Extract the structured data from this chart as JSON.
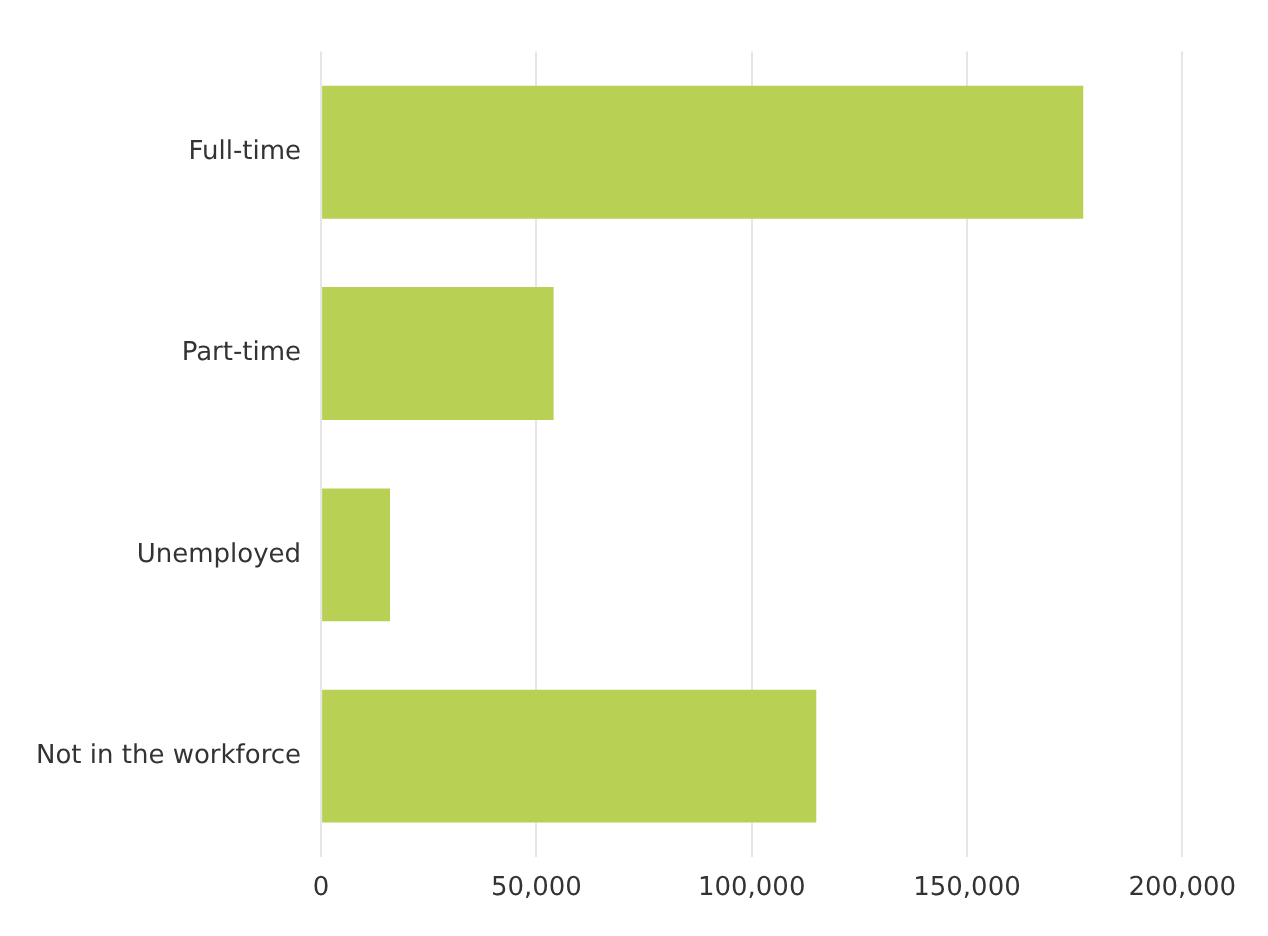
{
  "chart_data": {
    "type": "bar",
    "orientation": "horizontal",
    "categories": [
      "Full-time",
      "Part-time",
      "Unemployed",
      "Not in the workforce"
    ],
    "values": [
      177000,
      54000,
      16000,
      115000
    ],
    "color": "#b8d154",
    "xlim": [
      0,
      200000
    ],
    "xticks": [
      {
        "value": 0,
        "label": "0"
      },
      {
        "value": 50000,
        "label": "50,000"
      },
      {
        "value": 100000,
        "label": "100,000"
      },
      {
        "value": 150000,
        "label": "150,000"
      },
      {
        "value": 200000,
        "label": "200,000"
      }
    ],
    "grid": "x",
    "legend": false
  }
}
